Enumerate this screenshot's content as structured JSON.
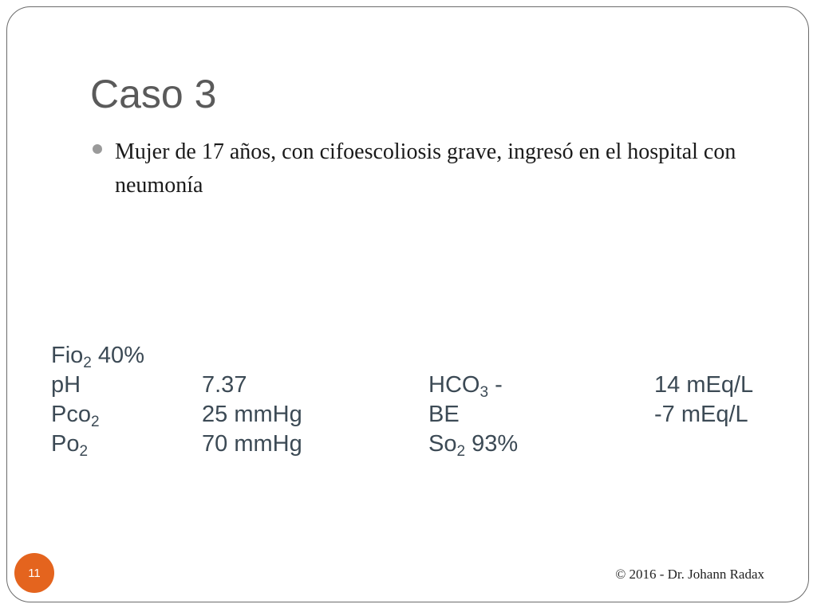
{
  "slide": {
    "title": "Caso 3",
    "bullets": [
      "Mujer de 17 años, con cifoescoliosis grave, ingresó en el hospital con neumonía"
    ],
    "lab_results": {
      "row0": {
        "a_base": "Fio",
        "a_sub": "2",
        "a_tail": " 40%"
      },
      "row1": {
        "a": "pH",
        "b": "7.37",
        "c_base": "HCO",
        "c_sub": "3",
        "c_tail": " -",
        "d": "14 mEq/L"
      },
      "row2": {
        "a_base": "Pco",
        "a_sub": "2",
        "b": "25 mmHg",
        "c": "BE",
        "d": "-7 mEq/L"
      },
      "row3": {
        "a_base": "Po",
        "a_sub": "2",
        "b": "70 mmHg",
        "c_base": "So",
        "c_sub": "2",
        "c_tail": " 93%"
      }
    },
    "page_number": "11",
    "footer": "© 2016 - Dr. Johann Radax"
  },
  "colors": {
    "title": "#5a5a5a",
    "bullet_dot": "#9a9a9a",
    "lab_text": "#3c4a55",
    "page_badge": "#e4641e",
    "frame_border": "#6b6b6b"
  }
}
